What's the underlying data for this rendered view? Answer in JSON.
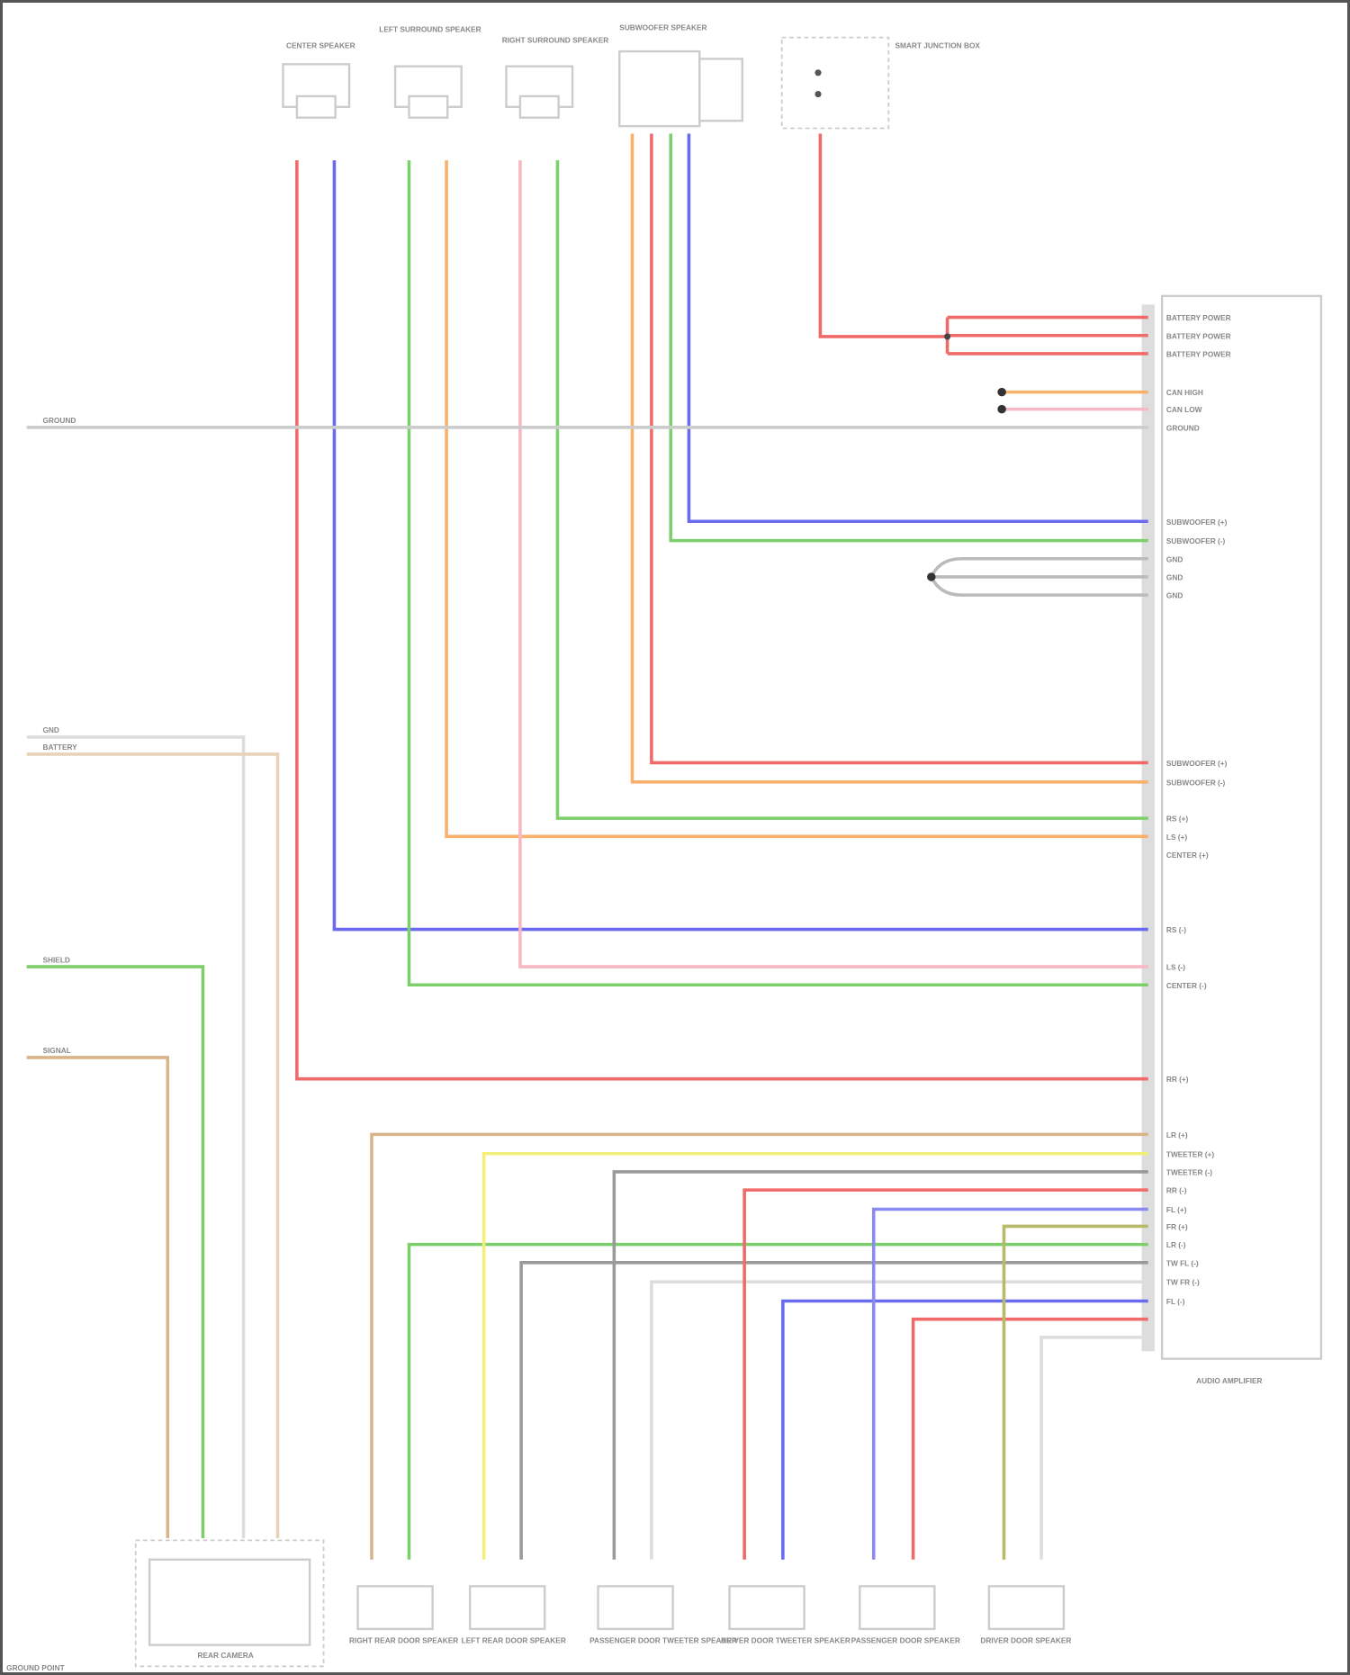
{
  "diagram": {
    "top_components": [
      {
        "label": "CENTER SPEAKER"
      },
      {
        "label": "LEFT SURROUND SPEAKER"
      },
      {
        "label": "RIGHT SURROUND SPEAKER"
      },
      {
        "label": "SUBWOOFER SPEAKER"
      },
      {
        "label": "SMART JUNCTION BOX"
      }
    ],
    "bottom_components": [
      {
        "label": "RIGHT REAR DOOR SPEAKER"
      },
      {
        "label": "LEFT REAR DOOR SPEAKER"
      },
      {
        "label": "PASSENGER DOOR TWEETER SPEAKER"
      },
      {
        "label": "DRIVER DOOR TWEETER SPEAKER"
      },
      {
        "label": "PASSENGER DOOR SPEAKER"
      },
      {
        "label": "DRIVER DOOR SPEAKER"
      }
    ],
    "rear_camera": {
      "label": "REAR CAMERA"
    },
    "amplifier": {
      "label": "AUDIO AMPLIFIER"
    },
    "amplifier_pins": [
      "BATTERY POWER",
      "BATTERY POWER",
      "BATTERY POWER",
      "CAN HIGH",
      "CAN LOW",
      "GROUND",
      "SUBWOOFER (+)",
      "SUBWOOFER (-)",
      "GND",
      "GND",
      "GND",
      "SUBWOOFER (+)",
      "SUBWOOFER (-)",
      "RS (+)",
      "LS (+)",
      "CENTER (+)",
      "RS (-)",
      "LS (-)",
      "CENTER (-)",
      "RR (+)",
      "LR (+)",
      "TWEETER (+)",
      "TWEETER (-)",
      "RR (-)",
      "FL (+)",
      "FR (+)",
      "LR (-)",
      "TW FL (-)",
      "TW FR (-)",
      "FL (-)"
    ],
    "left_signals": [
      "GROUND",
      "BATTERY",
      "GND",
      "SHIELD",
      "SIGNAL"
    ],
    "ground_note": "GROUND POINT",
    "wire_colors": {
      "red": "#f06a6a",
      "blue": "#6a6af0",
      "green": "#7ccf6a",
      "orange": "#f7b16a",
      "pink": "#f7b8c4",
      "yellow": "#f2ef7a",
      "gray": "#9a9a9a",
      "tan": "#d9b48a",
      "olive": "#b9b96a"
    }
  }
}
